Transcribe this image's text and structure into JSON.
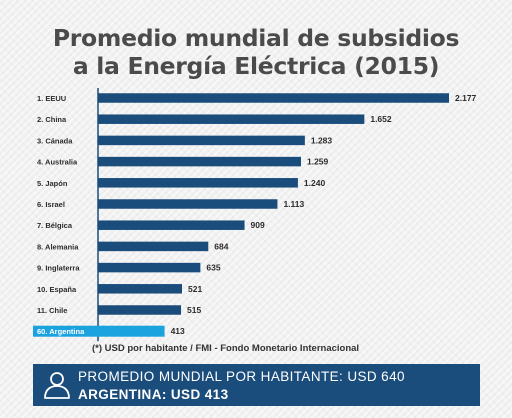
{
  "title_line1": "Promedio mundial de subsidios",
  "title_line2": "a la Energía Eléctrica (2015)",
  "note": "(*) USD por habitante / FMI - Fondo Monetario Internacional",
  "banner": {
    "line1": "PROMEDIO MUNDIAL POR HABITANTE: USD 640",
    "line2": "ARGENTINA: USD 413"
  },
  "colors": {
    "bar": "#1b4d7c",
    "highlight": "#1aa3df",
    "banner": "#1b4d7c",
    "title": "#4b4b4b"
  },
  "chart_data": {
    "type": "bar",
    "orientation": "horizontal",
    "categories": [
      "1. EEUU",
      "2. China",
      "3. Cánada",
      "4. Australia",
      "5. Japón",
      "6. Israel",
      "7. Bélgica",
      "8. Alemania",
      "9. Inglaterra",
      "10. España",
      "11. Chile",
      "60. Argentina"
    ],
    "values": [
      2177,
      1652,
      1283,
      1259,
      1240,
      1113,
      909,
      684,
      635,
      521,
      515,
      413
    ],
    "value_labels": [
      "2.177",
      "1.652",
      "1.283",
      "1.259",
      "1.240",
      "1.113",
      "909",
      "684",
      "635",
      "521",
      "515",
      "413"
    ],
    "highlight_index": 11,
    "xlim": [
      0,
      2177
    ],
    "grid": false,
    "legend": "none"
  }
}
